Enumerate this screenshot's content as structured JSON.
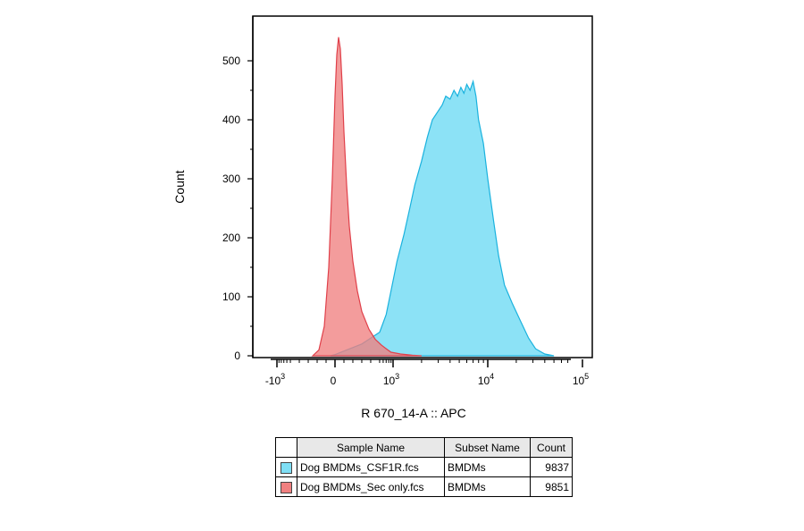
{
  "chart_data": {
    "type": "histogram",
    "xlabel": "R 670_14-A :: APC",
    "ylabel": "Count",
    "ylim": [
      0,
      560
    ],
    "x_scale": "biexponential",
    "y_ticks": [
      0,
      100,
      200,
      300,
      400,
      500
    ],
    "y_tick_labels": [
      "0",
      "100",
      "200",
      "300",
      "400",
      "500"
    ],
    "x_ticks": [
      {
        "base": "-10",
        "exp": "3",
        "value": -1000
      },
      {
        "base": "0",
        "exp": "",
        "value": 0
      },
      {
        "base": "10",
        "exp": "3",
        "value": 1000
      },
      {
        "base": "10",
        "exp": "4",
        "value": 10000
      },
      {
        "base": "10",
        "exp": "5",
        "value": 100000
      }
    ],
    "series": [
      {
        "name": "Dog BMDMs_Sec only.fcs",
        "color": "#f08080",
        "stroke": "#e0404a",
        "x": [
          -250,
          -180,
          -120,
          -70,
          -30,
          0,
          20,
          40,
          60,
          80,
          100,
          130,
          160,
          200,
          250,
          300,
          380,
          450,
          550,
          700,
          900,
          1200,
          1600,
          2000
        ],
        "y": [
          0,
          10,
          50,
          150,
          300,
          440,
          510,
          540,
          520,
          460,
          380,
          290,
          220,
          160,
          110,
          75,
          45,
          28,
          18,
          12,
          6,
          3,
          1,
          0
        ]
      },
      {
        "name": "Dog BMDMs_CSF1R.fcs",
        "color": "#7fdff5",
        "stroke": "#1ab2de",
        "x": [
          -50,
          0,
          100,
          300,
          500,
          700,
          900,
          1100,
          1300,
          1500,
          1700,
          2000,
          2300,
          2600,
          3000,
          3300,
          3600,
          4000,
          4400,
          4800,
          5200,
          5600,
          6000,
          6500,
          7000,
          7500,
          8000,
          9000,
          10000,
          11500,
          13000,
          15000,
          18000,
          22000,
          27000,
          32000,
          40000,
          50000
        ],
        "y": [
          0,
          2,
          8,
          20,
          40,
          70,
          110,
          160,
          205,
          250,
          290,
          330,
          370,
          400,
          415,
          425,
          440,
          435,
          450,
          440,
          455,
          445,
          460,
          450,
          465,
          440,
          400,
          360,
          300,
          230,
          170,
          120,
          90,
          60,
          30,
          12,
          3,
          0
        ]
      }
    ]
  },
  "legend": {
    "headers": [
      "Sample Name",
      "Subset Name",
      "Count"
    ],
    "rows": [
      {
        "sample": "Dog BMDMs_CSF1R.fcs",
        "subset": "BMDMs",
        "count": "9837",
        "color": "#7fdff5"
      },
      {
        "sample": "Dog BMDMs_Sec only.fcs",
        "subset": "BMDMs",
        "count": "9851",
        "color": "#f08080"
      }
    ]
  }
}
